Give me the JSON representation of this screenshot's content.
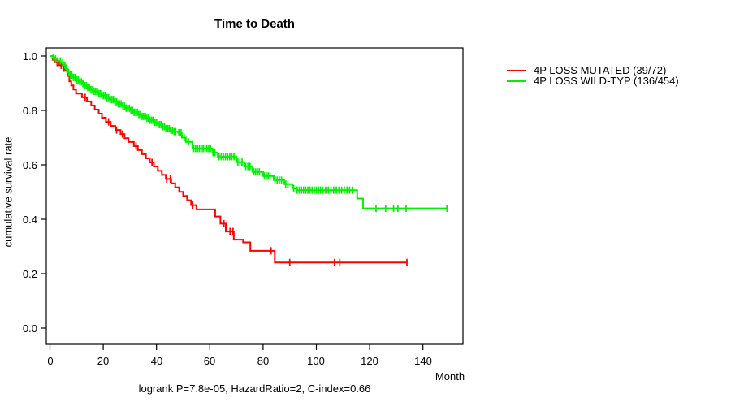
{
  "chart_data": {
    "type": "line",
    "subtype": "kaplan-meier-step-curves",
    "title": "Time to Death",
    "xlabel": "Month",
    "ylabel": "cumulative survival rate",
    "xlim": [
      0,
      157
    ],
    "ylim": [
      0,
      1
    ],
    "grid": false,
    "legend_position": "right-outside",
    "x_ticks": [
      0,
      20,
      40,
      60,
      80,
      100,
      120,
      140
    ],
    "x_tick_labels": [
      "0",
      "20",
      "40",
      "60",
      "80",
      "100",
      "120",
      "140"
    ],
    "y_ticks": [
      1.0,
      0.8,
      0.6,
      0.4,
      0.2,
      0.0
    ],
    "y_tick_labels": [
      "1.0",
      "0.8",
      "0.6",
      "0.4",
      "0.2",
      "0.0"
    ],
    "annotation": "logrank P=7.8e-05, HazardRatio=2, C-index=0.66",
    "series": [
      {
        "name": "4P LOSS MUTATED",
        "label": "4P LOSS MUTATED (39/72)",
        "ratio": "39/72",
        "color": "#FF0000",
        "steps": [
          [
            0,
            1.0
          ],
          [
            1,
            0.986
          ],
          [
            1.8,
            0.976
          ],
          [
            3.4,
            0.966
          ],
          [
            5,
            0.955
          ],
          [
            5.8,
            0.946
          ],
          [
            6.6,
            0.927
          ],
          [
            7.3,
            0.907
          ],
          [
            8,
            0.892
          ],
          [
            8.8,
            0.877
          ],
          [
            9.8,
            0.862
          ],
          [
            12,
            0.848
          ],
          [
            13.9,
            0.833
          ],
          [
            15.5,
            0.818
          ],
          [
            16.8,
            0.803
          ],
          [
            18.3,
            0.788
          ],
          [
            19.5,
            0.773
          ],
          [
            21,
            0.758
          ],
          [
            22.8,
            0.743
          ],
          [
            24.5,
            0.728
          ],
          [
            26.5,
            0.713
          ],
          [
            28,
            0.698
          ],
          [
            29.5,
            0.684
          ],
          [
            31.5,
            0.669
          ],
          [
            33,
            0.654
          ],
          [
            34.5,
            0.639
          ],
          [
            36,
            0.624
          ],
          [
            37.5,
            0.609
          ],
          [
            39,
            0.594
          ],
          [
            40.5,
            0.578
          ],
          [
            42,
            0.563
          ],
          [
            43.5,
            0.548
          ],
          [
            45.5,
            0.532
          ],
          [
            47,
            0.517
          ],
          [
            48.5,
            0.501
          ],
          [
            50,
            0.486
          ],
          [
            51.5,
            0.47
          ],
          [
            53,
            0.452
          ],
          [
            55,
            0.436
          ],
          [
            62,
            0.41
          ],
          [
            64,
            0.384
          ],
          [
            66,
            0.355
          ],
          [
            69,
            0.325
          ],
          [
            72.5,
            0.315
          ],
          [
            75.2,
            0.284
          ],
          [
            84.4,
            0.241
          ],
          [
            134,
            0.241
          ]
        ],
        "censor_months": [
          2.7,
          4.2,
          5.2,
          13.2,
          22,
          25,
          27.2,
          32.3,
          38.3,
          43.8,
          45.2,
          53.6,
          65.3,
          67.6,
          68.7,
          83,
          90,
          106.8,
          108.8,
          134
        ]
      },
      {
        "name": "4P LOSS WILD-TYP",
        "label": "4P LOSS WILD-TYP (136/454)",
        "ratio": "136/454",
        "color": "#00EE00",
        "steps": [
          [
            0,
            1.0
          ],
          [
            1,
            0.995
          ],
          [
            2,
            0.989
          ],
          [
            3,
            0.982
          ],
          [
            4,
            0.976
          ],
          [
            5,
            0.966
          ],
          [
            6,
            0.952
          ],
          [
            6.6,
            0.94
          ],
          [
            7.5,
            0.93
          ],
          [
            8.5,
            0.921
          ],
          [
            9.5,
            0.912
          ],
          [
            11,
            0.905
          ],
          [
            12,
            0.898
          ],
          [
            13,
            0.891
          ],
          [
            14,
            0.884
          ],
          [
            15,
            0.877
          ],
          [
            16.5,
            0.87
          ],
          [
            18,
            0.862
          ],
          [
            19.5,
            0.855
          ],
          [
            21,
            0.847
          ],
          [
            22.5,
            0.84
          ],
          [
            24,
            0.832
          ],
          [
            25.5,
            0.824
          ],
          [
            27,
            0.816
          ],
          [
            28.5,
            0.808
          ],
          [
            30,
            0.8
          ],
          [
            31.5,
            0.793
          ],
          [
            33,
            0.785
          ],
          [
            34.5,
            0.778
          ],
          [
            36,
            0.771
          ],
          [
            37.5,
            0.764
          ],
          [
            39,
            0.756
          ],
          [
            40.5,
            0.748
          ],
          [
            42,
            0.74
          ],
          [
            43.5,
            0.733
          ],
          [
            45,
            0.727
          ],
          [
            46.5,
            0.722
          ],
          [
            48,
            0.718
          ],
          [
            49.5,
            0.7
          ],
          [
            51,
            0.684
          ],
          [
            53.5,
            0.66
          ],
          [
            61,
            0.645
          ],
          [
            63,
            0.63
          ],
          [
            70,
            0.61
          ],
          [
            73,
            0.594
          ],
          [
            76,
            0.574
          ],
          [
            80,
            0.559
          ],
          [
            84,
            0.544
          ],
          [
            88,
            0.529
          ],
          [
            91,
            0.513
          ],
          [
            92.5,
            0.507
          ],
          [
            115.3,
            0.476
          ],
          [
            117.5,
            0.44
          ],
          [
            149,
            0.44
          ]
        ],
        "censor_months": [
          1.2,
          2.1,
          3,
          3.9,
          4.8,
          5.6,
          6.3,
          7,
          7.6,
          8.2,
          8.8,
          9.4,
          10,
          10.6,
          11.2,
          11.8,
          12.4,
          13,
          13.6,
          14.2,
          14.8,
          15.4,
          16,
          16.6,
          17.2,
          17.8,
          18.4,
          19,
          19.6,
          20.2,
          20.8,
          21.4,
          22,
          22.6,
          23.2,
          23.8,
          24.4,
          25,
          25.6,
          26.2,
          26.8,
          27.4,
          28,
          28.6,
          29.2,
          29.8,
          30.4,
          31,
          31.6,
          32.2,
          32.8,
          33.4,
          34,
          34.6,
          35.2,
          35.8,
          36.4,
          37,
          37.6,
          38.2,
          38.8,
          39.4,
          40,
          40.6,
          41.2,
          41.8,
          42.4,
          43,
          43.6,
          44.2,
          44.8,
          45.4,
          46,
          46.6,
          47.2,
          48.4,
          49.2,
          50.4,
          52,
          54,
          54.7,
          55.4,
          56.1,
          56.8,
          57.5,
          58.2,
          58.9,
          59.6,
          60.3,
          61.2,
          61.9,
          63.5,
          64.3,
          65.1,
          65.9,
          66.7,
          67.5,
          68.3,
          69.1,
          70.5,
          71.3,
          72.1,
          73.5,
          74.3,
          75.1,
          76.5,
          77.2,
          77.9,
          78.6,
          80.5,
          81.2,
          81.9,
          82.6,
          84.5,
          85.3,
          86.1,
          86.9,
          88.5,
          89.3,
          91.5,
          92.8,
          93.6,
          94.4,
          95.2,
          96,
          96.8,
          97.6,
          98.4,
          99.2,
          100,
          100.8,
          101.6,
          102.4,
          103.5,
          104.5,
          105.5,
          106.5,
          107.5,
          108.5,
          109.5,
          110.5,
          111.5,
          112.5,
          113.5,
          122.4,
          126,
          129,
          130.6,
          133.7,
          149
        ]
      }
    ]
  }
}
